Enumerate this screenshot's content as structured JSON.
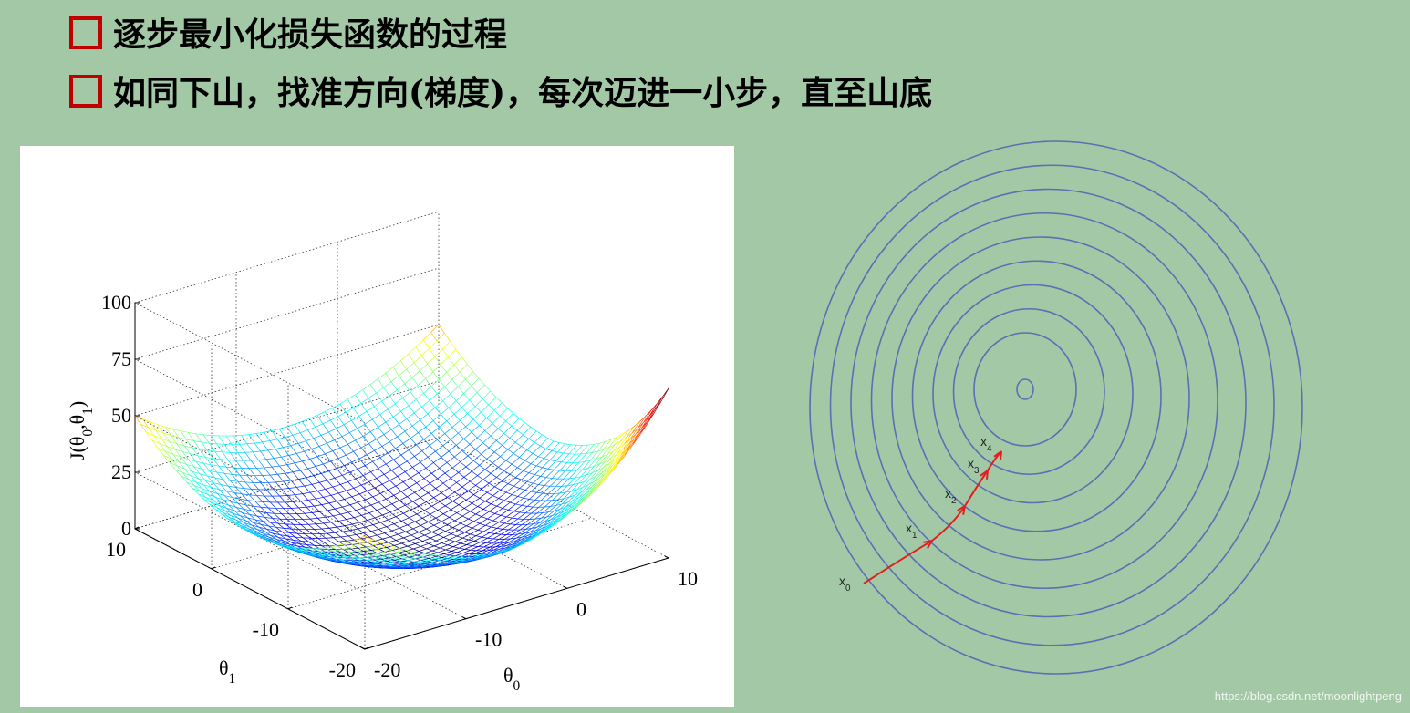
{
  "bullets": [
    "逐步最小化损失函数的过程",
    "如同下山，找准方向(梯度)，每次迈进一小步，直至山底"
  ],
  "surface_plot": {
    "z_label": [
      {
        "text": "J("
      },
      {
        "text": "θ"
      },
      {
        "text": "0",
        "sub": true
      },
      {
        "text": ","
      },
      {
        "text": "θ"
      },
      {
        "text": "1",
        "sub": true
      },
      {
        "text": ")"
      }
    ],
    "z_ticks": [
      100,
      75,
      50,
      25,
      0
    ],
    "theta1_ticks": [
      10,
      0,
      -10,
      -20
    ],
    "theta0_ticks": [
      -20,
      -10,
      0,
      10
    ],
    "theta1_label": [
      {
        "text": "θ"
      },
      {
        "text": "1",
        "sub": true
      }
    ],
    "theta0_label": [
      {
        "text": "θ"
      },
      {
        "text": "0",
        "sub": true
      }
    ]
  },
  "contour_plot": {
    "points": [
      [
        {
          "text": "x"
        },
        {
          "text": "0",
          "sub": true
        }
      ],
      [
        {
          "text": "x"
        },
        {
          "text": "1",
          "sub": true
        }
      ],
      [
        {
          "text": "x"
        },
        {
          "text": "2",
          "sub": true
        }
      ],
      [
        {
          "text": "x"
        },
        {
          "text": "3",
          "sub": true
        }
      ],
      [
        {
          "text": "x"
        },
        {
          "text": "4",
          "sub": true
        }
      ]
    ]
  },
  "watermark": "https://blog.csdn.net/moonlightpeng"
}
